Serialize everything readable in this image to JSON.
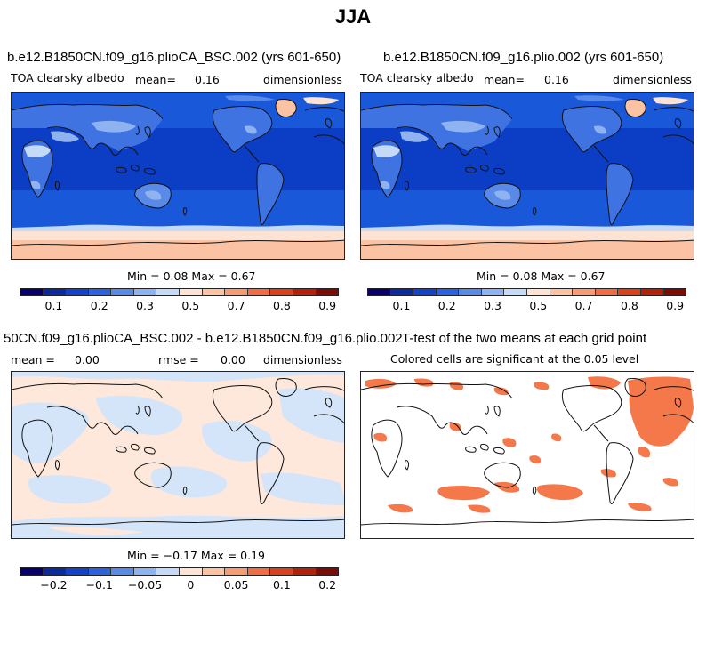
{
  "title": "JJA",
  "panels": {
    "p1": {
      "title": "b.e12.B1850CN.f09_g16.plioCA_BSC.002 (yrs 601-650)",
      "variable": "TOA clearsky albedo",
      "mean_label": "mean=",
      "mean_value": "0.16",
      "units": "dimensionless",
      "minmax": "Min =   0.08 Max =   0.67"
    },
    "p2": {
      "title": "b.e12.B1850CN.f09_g16.plio.002 (yrs 601-650)",
      "variable": "TOA clearsky albedo",
      "mean_label": "mean=",
      "mean_value": "0.16",
      "units": "dimensionless",
      "minmax": "Min =   0.08 Max =   0.67"
    },
    "p3": {
      "title": "50CN.f09_g16.plioCA_BSC.002 - b.e12.B1850CN.f09_g16.plio.002",
      "mean_label": "mean =",
      "mean_value": "0.00",
      "rmse_label": "rmse =",
      "rmse_value": "0.00",
      "units": "dimensionless",
      "minmax": "Min =  −0.17 Max =   0.19"
    },
    "p4": {
      "title": "T-test of the two means at each grid point",
      "subtitle": "Colored cells are significant at the 0.05 level"
    }
  },
  "colorbar_abs": {
    "colors": [
      "#08006e",
      "#0a2a9e",
      "#1442c8",
      "#2c62df",
      "#5a8ae8",
      "#8fb3f0",
      "#c5daf7",
      "#fde3d3",
      "#fbc3a4",
      "#f79b74",
      "#ef6c45",
      "#d9411d",
      "#b3210b",
      "#7e0a04"
    ],
    "ticks": [
      "0.1",
      "0.2",
      "0.3",
      "0.5",
      "0.7",
      "0.8",
      "0.9"
    ]
  },
  "colorbar_diff": {
    "colors": [
      "#08006e",
      "#0a2a9e",
      "#1442c8",
      "#2c62df",
      "#5a8ae8",
      "#8fb3f0",
      "#c5daf7",
      "#fde3d3",
      "#fbc3a4",
      "#f79b74",
      "#ef6c45",
      "#d9411d",
      "#b3210b",
      "#7e0a04"
    ],
    "ticks": [
      "−0.2",
      "−0.1",
      "−0.05",
      "0",
      "0.05",
      "0.1",
      "0.2"
    ]
  },
  "map_colors": {
    "ocean_dark": "#0b3ec4",
    "ocean_mid": "#1a58da",
    "land_mid": "#3f73e2",
    "land_light": "#8fb3f0",
    "desert": "#c5daf7",
    "ice_pink": "#fde3d3",
    "ice_peach": "#fbc3a4",
    "diff_blue": "#d4e4f9",
    "diff_peach": "#fde8db",
    "signif": "#f4784a"
  }
}
